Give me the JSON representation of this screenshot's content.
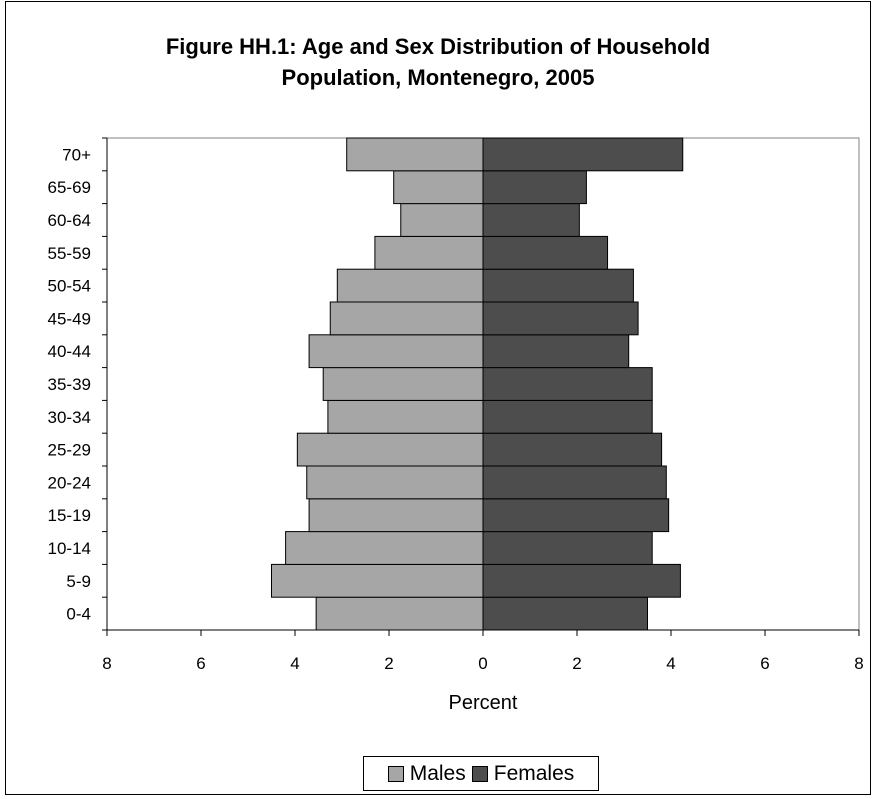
{
  "chart_data": {
    "type": "bar",
    "orientation": "horizontal",
    "layout": "population-pyramid",
    "title": "Figure HH.1: Age and Sex Distribution of Household Population, Montenegro, 2005",
    "title_lines": [
      "Figure HH.1: Age and Sex Distribution of Household",
      "Population, Montenegro, 2005"
    ],
    "xlabel": "Percent",
    "ylabel": "",
    "xlim": [
      -8,
      8
    ],
    "x_ticks": [
      8,
      6,
      4,
      2,
      0,
      2,
      4,
      6,
      8
    ],
    "categories": [
      "0-4",
      "5-9",
      "10-14",
      "15-19",
      "20-24",
      "25-29",
      "30-34",
      "35-39",
      "40-44",
      "45-49",
      "50-54",
      "55-59",
      "60-64",
      "65-69",
      "70+"
    ],
    "series": [
      {
        "name": "Males",
        "color": "#a6a6a6",
        "side": "left",
        "values": [
          3.55,
          4.5,
          4.2,
          3.7,
          3.75,
          3.95,
          3.3,
          3.4,
          3.7,
          3.25,
          3.1,
          2.3,
          1.75,
          1.9,
          2.9
        ]
      },
      {
        "name": "Females",
        "color": "#4d4d4d",
        "side": "right",
        "values": [
          3.5,
          4.2,
          3.6,
          3.95,
          3.9,
          3.8,
          3.6,
          3.6,
          3.1,
          3.3,
          3.2,
          2.65,
          2.05,
          2.2,
          4.25
        ]
      }
    ],
    "grid": false,
    "legend_position": "bottom"
  }
}
